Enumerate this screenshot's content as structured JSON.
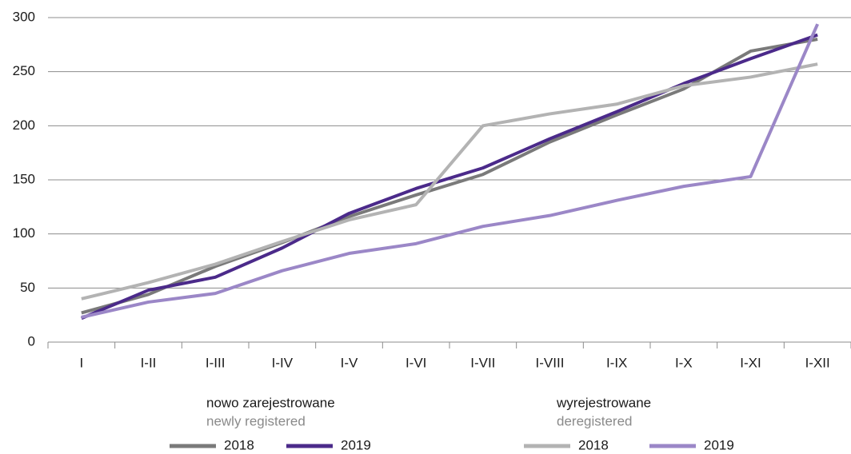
{
  "chart_data": {
    "type": "line",
    "categories": [
      "I",
      "I-II",
      "I-III",
      "I-IV",
      "I-V",
      "I-VI",
      "I-VII",
      "I-VIII",
      "I-IX",
      "I-X",
      "I-XI",
      "I-XII"
    ],
    "series": [
      {
        "name": "2018",
        "color": "#7a7a7a",
        "values": [
          27,
          44,
          70,
          92,
          116,
          136,
          155,
          185,
          210,
          234,
          269,
          280
        ]
      },
      {
        "name": "2019",
        "color": "#4b2a8a",
        "values": [
          22,
          48,
          60,
          87,
          119,
          142,
          161,
          188,
          213,
          239,
          262,
          284
        ]
      },
      {
        "name": "2018",
        "color": "#b3b3b3",
        "values": [
          40,
          55,
          72,
          93,
          113,
          127,
          200,
          211,
          220,
          237,
          245,
          257
        ]
      },
      {
        "name": "2019",
        "color": "#9b87c7",
        "values": [
          23,
          37,
          45,
          66,
          82,
          91,
          107,
          117,
          131,
          144,
          153,
          294
        ]
      }
    ],
    "legend_groups": [
      {
        "title": "nowo zarejestrowane",
        "subtitle": "newly registered"
      },
      {
        "title": "wyrejestrowane",
        "subtitle": "deregistered"
      }
    ],
    "ylim": [
      0,
      300
    ],
    "yticks": [
      0,
      50,
      100,
      150,
      200,
      250,
      300
    ],
    "grid": true
  }
}
